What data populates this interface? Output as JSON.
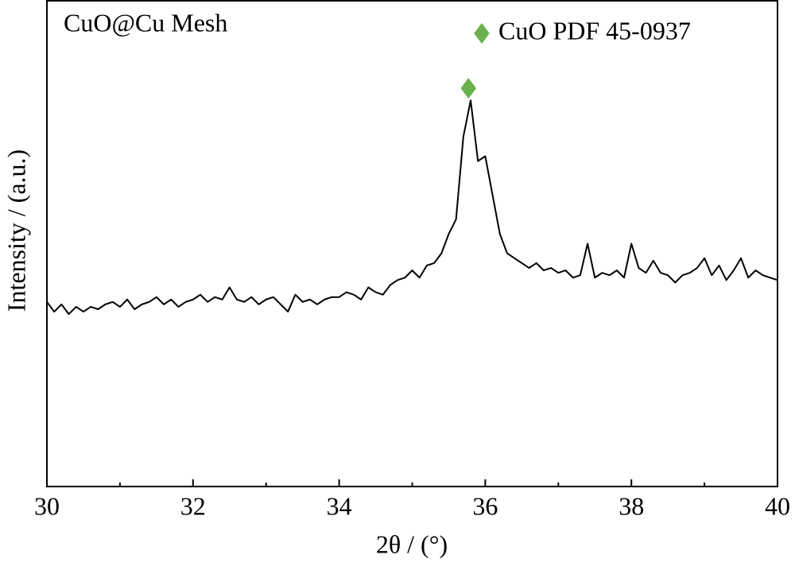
{
  "chart_data": {
    "type": "line",
    "title": "CuO@Cu Mesh",
    "x_label": "2θ / (°)",
    "y_label": "Intensity / (a.u.)",
    "x": [
      30.0,
      30.1,
      30.2,
      30.3,
      30.4,
      30.5,
      30.6,
      30.7,
      30.8,
      30.9,
      31.0,
      31.1,
      31.2,
      31.3,
      31.4,
      31.5,
      31.6,
      31.7,
      31.8,
      31.9,
      32.0,
      32.1,
      32.2,
      32.3,
      32.4,
      32.5,
      32.6,
      32.7,
      32.8,
      32.9,
      33.0,
      33.1,
      33.2,
      33.3,
      33.4,
      33.5,
      33.6,
      33.7,
      33.8,
      33.9,
      34.0,
      34.1,
      34.2,
      34.3,
      34.4,
      34.5,
      34.6,
      34.7,
      34.8,
      34.9,
      35.0,
      35.1,
      35.2,
      35.3,
      35.4,
      35.5,
      35.6,
      35.7,
      35.8,
      35.9,
      36.0,
      36.1,
      36.2,
      36.3,
      36.4,
      36.5,
      36.6,
      36.7,
      36.8,
      36.9,
      37.0,
      37.1,
      37.2,
      37.3,
      37.4,
      37.5,
      37.6,
      37.7,
      37.8,
      37.9,
      38.0,
      38.1,
      38.2,
      38.3,
      38.4,
      38.5,
      38.6,
      38.7,
      38.8,
      38.9,
      39.0,
      39.1,
      39.2,
      39.3,
      39.4,
      39.5,
      39.6,
      39.7,
      39.8,
      39.9,
      40.0
    ],
    "series": [
      {
        "name": "CuO@Cu Mesh",
        "color": "#000000",
        "values": [
          38,
          36,
          37.5,
          35.5,
          37,
          36,
          37,
          36.5,
          37.5,
          38,
          37,
          38.5,
          36.5,
          37.5,
          38,
          39,
          37.5,
          38.5,
          37,
          38,
          38.5,
          39.5,
          38,
          39,
          38.5,
          41,
          38.5,
          38,
          39,
          37.5,
          38.5,
          39,
          37.5,
          36,
          39.5,
          38,
          38.5,
          37.5,
          38.5,
          39,
          39,
          40,
          39.5,
          38.5,
          41,
          40,
          39.5,
          41.5,
          42.5,
          43,
          44.5,
          43,
          45.5,
          46,
          48,
          52,
          55,
          72,
          79.5,
          67,
          68,
          60,
          52,
          48,
          47,
          46,
          45,
          46,
          44.5,
          45,
          44,
          44.5,
          43,
          43.5,
          50,
          43,
          44,
          43.5,
          44.5,
          43,
          50,
          45,
          44,
          46.5,
          44,
          43.5,
          42,
          43.5,
          44,
          45,
          47,
          43.5,
          45.5,
          42.5,
          44.5,
          47,
          43,
          44.5,
          43.5,
          43,
          42.5
        ]
      }
    ],
    "legend": {
      "label": "CuO PDF 45-0937",
      "color": "#6ab04c",
      "position": "upper right"
    },
    "peak_markers": [
      {
        "x": 35.77,
        "y": 82,
        "color": "#6ab04c"
      }
    ],
    "xlim": [
      30,
      40
    ],
    "xticks": [
      30,
      32,
      34,
      36,
      38,
      40
    ],
    "xminorticks": [
      31,
      33,
      35,
      37,
      39
    ],
    "ylim": [
      0,
      100
    ],
    "grid": false
  }
}
